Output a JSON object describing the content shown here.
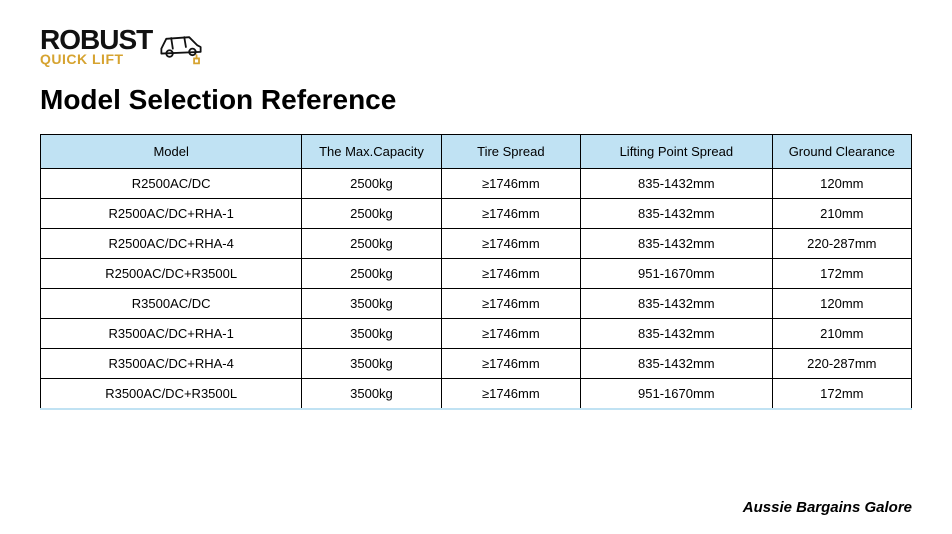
{
  "logo": {
    "line1": "ROBUST",
    "line2": "QUICK LIFT",
    "line1_color": "#111111",
    "line2_color": "#d6a330"
  },
  "title": "Model Selection Reference",
  "table": {
    "header_bg": "#c0e2f3",
    "border_color": "#000000",
    "columns": [
      "Model",
      "The Max.Capacity",
      "Tire Spread",
      "Lifting Point Spread",
      "Ground Clearance"
    ],
    "rows": [
      [
        "R2500AC/DC",
        "2500kg",
        "≥1746mm",
        "835-1432mm",
        "120mm"
      ],
      [
        "R2500AC/DC+RHA-1",
        "2500kg",
        "≥1746mm",
        "835-1432mm",
        "210mm"
      ],
      [
        "R2500AC/DC+RHA-4",
        "2500kg",
        "≥1746mm",
        "835-1432mm",
        "220-287mm"
      ],
      [
        "R2500AC/DC+R3500L",
        "2500kg",
        "≥1746mm",
        "951-1670mm",
        "172mm"
      ],
      [
        "R3500AC/DC",
        "3500kg",
        "≥1746mm",
        "835-1432mm",
        "120mm"
      ],
      [
        "R3500AC/DC+RHA-1",
        "3500kg",
        "≥1746mm",
        "835-1432mm",
        "210mm"
      ],
      [
        "R3500AC/DC+RHA-4",
        "3500kg",
        "≥1746mm",
        "835-1432mm",
        "220-287mm"
      ],
      [
        "R3500AC/DC+R3500L",
        "3500kg",
        "≥1746mm",
        "951-1670mm",
        "172mm"
      ]
    ]
  },
  "footer": "Aussie Bargains Galore"
}
